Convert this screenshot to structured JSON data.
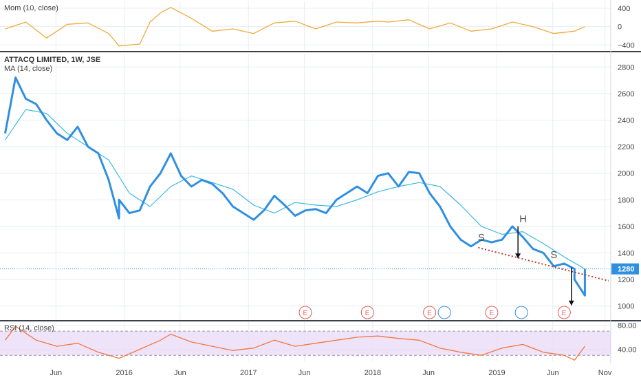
{
  "header": {
    "symbol_title": "ATTACQ LIMITED, 1W, JSE",
    "ma_label": "MA (14, close)"
  },
  "colors": {
    "price": "#2f8fe0",
    "ma": "#39b9e6",
    "momentum": "#f2a93b",
    "rsi": "#f2763b",
    "rsi_band": "#ead9f8",
    "trendline": "#c0392b",
    "last_price_bg": "#2f8fe0",
    "earnings": "#e05a4f",
    "dividend": "#2f8fe0",
    "grid": "#e8eef3"
  },
  "chart_data": [
    {
      "type": "line",
      "panel": "momentum",
      "title": "Mom (10, close)",
      "ylim": [
        -500,
        550
      ],
      "y_ticks": [
        "400",
        "0",
        "−400"
      ],
      "y_tick_values": [
        400,
        0,
        -400
      ],
      "series": [
        {
          "x": [
            "2015-01",
            "2015-03",
            "2015-05",
            "2015-07",
            "2015-09",
            "2015-11",
            "2015-12",
            "2016-02",
            "2016-03",
            "2016-04",
            "2016-05",
            "2016-07",
            "2016-09",
            "2016-11",
            "2017-01",
            "2017-03",
            "2017-05",
            "2017-07",
            "2017-09",
            "2017-11",
            "2018-01",
            "2018-02",
            "2018-04",
            "2018-06",
            "2018-08",
            "2018-10",
            "2018-12",
            "2019-02",
            "2019-04",
            "2019-06",
            "2019-08",
            "2019-09"
          ],
          "values": [
            -50,
            100,
            -250,
            50,
            80,
            -150,
            -420,
            -380,
            100,
            300,
            420,
            180,
            -100,
            -50,
            -150,
            80,
            120,
            -50,
            100,
            80,
            120,
            100,
            150,
            -50,
            80,
            -100,
            -50,
            100,
            0,
            -150,
            -100,
            0
          ]
        }
      ]
    },
    {
      "type": "line",
      "panel": "price",
      "title": "ATTACQ LIMITED, 1W, JSE",
      "ylim": [
        900,
        2900
      ],
      "y_ticks": [
        "2800",
        "2600",
        "2400",
        "2200",
        "2000",
        "1800",
        "1600",
        "1400",
        "1200",
        "1000"
      ],
      "y_tick_values": [
        2800,
        2600,
        2400,
        2200,
        2000,
        1800,
        1600,
        1400,
        1200,
        1000
      ],
      "x_ticks": [
        "Jun",
        "2016",
        "Jun",
        "2017",
        "Jun",
        "2018",
        "Jun",
        "2019",
        "Jun",
        "Nov"
      ],
      "last_price": "1280",
      "series": [
        {
          "name": "ATTACQ LIMITED",
          "x": [
            "2015-01",
            "2015-02",
            "2015-03",
            "2015-04",
            "2015-05",
            "2015-06",
            "2015-07",
            "2015-08",
            "2015-09",
            "2015-10",
            "2015-11",
            "2015-12",
            "2015-12",
            "2016-01",
            "2016-02",
            "2016-03",
            "2016-04",
            "2016-05",
            "2016-06",
            "2016-07",
            "2016-08",
            "2016-09",
            "2016-10",
            "2016-11",
            "2016-12",
            "2017-01",
            "2017-02",
            "2017-03",
            "2017-04",
            "2017-05",
            "2017-06",
            "2017-07",
            "2017-08",
            "2017-09",
            "2017-10",
            "2017-11",
            "2017-12",
            "2018-01",
            "2018-02",
            "2018-03",
            "2018-04",
            "2018-05",
            "2018-06",
            "2018-07",
            "2018-08",
            "2018-09",
            "2018-10",
            "2018-11",
            "2018-12",
            "2019-01",
            "2019-02",
            "2019-03",
            "2019-04",
            "2019-05",
            "2019-06",
            "2019-07",
            "2019-08",
            "2019-08",
            "2019-09",
            "2019-09"
          ],
          "values": [
            2300,
            2720,
            2560,
            2520,
            2400,
            2300,
            2250,
            2350,
            2200,
            2150,
            1950,
            1660,
            1800,
            1700,
            1720,
            1900,
            2000,
            2150,
            1980,
            1900,
            1950,
            1920,
            1850,
            1750,
            1700,
            1650,
            1720,
            1830,
            1760,
            1680,
            1720,
            1730,
            1700,
            1800,
            1850,
            1900,
            1850,
            1980,
            2000,
            1900,
            2010,
            2000,
            1850,
            1750,
            1600,
            1500,
            1450,
            1500,
            1480,
            1500,
            1600,
            1520,
            1430,
            1400,
            1300,
            1320,
            1280,
            1200,
            1080,
            1280
          ]
        },
        {
          "name": "MA (14, close)",
          "x": [
            "2015-01",
            "2015-03",
            "2015-05",
            "2015-07",
            "2015-09",
            "2015-11",
            "2016-01",
            "2016-03",
            "2016-05",
            "2016-07",
            "2016-09",
            "2016-11",
            "2017-01",
            "2017-03",
            "2017-05",
            "2017-07",
            "2017-09",
            "2017-11",
            "2018-01",
            "2018-03",
            "2018-05",
            "2018-07",
            "2018-09",
            "2018-11",
            "2019-01",
            "2019-03",
            "2019-05",
            "2019-07",
            "2019-09"
          ],
          "values": [
            2250,
            2480,
            2450,
            2300,
            2200,
            2100,
            1850,
            1750,
            1900,
            1980,
            1930,
            1880,
            1760,
            1700,
            1780,
            1760,
            1750,
            1800,
            1860,
            1900,
            1930,
            1900,
            1760,
            1600,
            1540,
            1560,
            1470,
            1370,
            1280
          ]
        }
      ],
      "annotations": [
        {
          "text": "S",
          "x": "2018-11",
          "y": 1460
        },
        {
          "text": "H",
          "x": "2019-03",
          "y": 1600
        },
        {
          "text": "S",
          "x": "2019-06",
          "y": 1330
        }
      ],
      "events": [
        {
          "text": "E",
          "x": "2017-06"
        },
        {
          "text": "E",
          "x": "2017-12"
        },
        {
          "text": "E",
          "x": "2018-06"
        },
        {
          "text": "E",
          "x": "2018-12"
        },
        {
          "text": "E",
          "x": "2019-07"
        }
      ]
    },
    {
      "type": "line",
      "panel": "rsi",
      "title": "RSI (14, close)",
      "ylim": [
        20,
        85
      ],
      "y_ticks": [
        "80.00",
        "40.00"
      ],
      "y_tick_values": [
        80,
        40
      ],
      "band": [
        30,
        70
      ],
      "series": [
        {
          "x": [
            "2015-01",
            "2015-02",
            "2015-04",
            "2015-06",
            "2015-08",
            "2015-10",
            "2015-12",
            "2016-02",
            "2016-04",
            "2016-05",
            "2016-07",
            "2016-09",
            "2016-11",
            "2017-01",
            "2017-03",
            "2017-05",
            "2017-07",
            "2017-09",
            "2017-11",
            "2018-01",
            "2018-03",
            "2018-05",
            "2018-07",
            "2018-09",
            "2018-11",
            "2019-01",
            "2019-03",
            "2019-05",
            "2019-07",
            "2019-08",
            "2019-09"
          ],
          "values": [
            55,
            78,
            55,
            45,
            50,
            35,
            25,
            40,
            55,
            65,
            52,
            45,
            38,
            42,
            55,
            45,
            50,
            55,
            60,
            62,
            58,
            55,
            42,
            35,
            30,
            42,
            48,
            35,
            30,
            22,
            45
          ]
        }
      ]
    }
  ]
}
